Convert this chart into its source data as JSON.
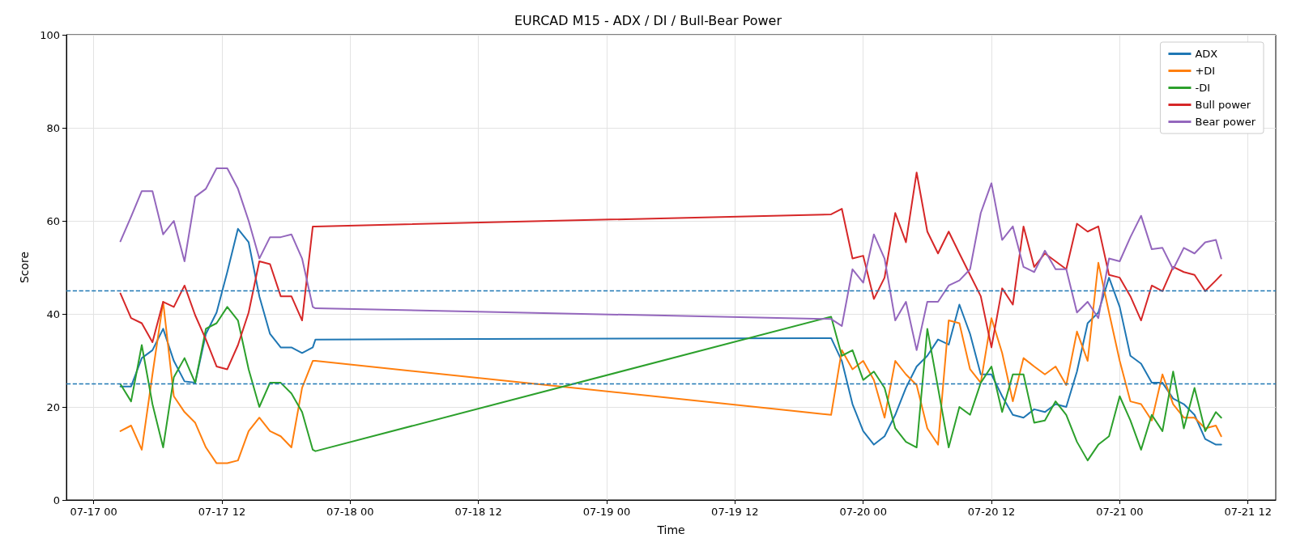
{
  "chart_data": {
    "type": "line",
    "title": "EURCAD M15 - ADX / DI / Bull-Bear Power",
    "xlabel": "Time",
    "ylabel": "Score",
    "x": [
      "--07-17T02:30",
      "--07-17T03:30",
      "--07-17T04:30",
      "--07-17T05:30",
      "--07-17T06:30",
      "--07-17T07:30",
      "--07-17T08:30",
      "--07-17T09:30",
      "--07-17T10:30",
      "--07-17T11:30",
      "--07-17T12:30",
      "--07-17T13:30",
      "--07-17T14:30",
      "--07-17T15:30",
      "--07-17T16:30",
      "--07-17T17:30",
      "--07-17T18:30",
      "--07-17T19:30",
      "--07-17T20:30",
      "--07-17T20:45",
      "--07-19T21:00",
      "--07-19T22:00",
      "--07-19T23:00",
      "--07-20T00:00",
      "--07-20T01:00",
      "--07-20T02:00",
      "--07-20T03:00",
      "--07-20T04:00",
      "--07-20T05:00",
      "--07-20T06:00",
      "--07-20T07:00",
      "--07-20T08:00",
      "--07-20T09:00",
      "--07-20T10:00",
      "--07-20T11:00",
      "--07-20T12:00",
      "--07-20T13:00",
      "--07-20T14:00",
      "--07-20T15:00",
      "--07-20T16:00",
      "--07-20T17:00",
      "--07-20T18:00",
      "--07-20T19:00",
      "--07-20T20:00",
      "--07-20T21:00",
      "--07-20T22:00",
      "--07-20T23:00",
      "--07-21T00:00",
      "--07-21T01:00",
      "--07-21T02:00",
      "--07-21T03:00",
      "--07-21T04:00",
      "--07-21T05:00",
      "--07-21T06:00",
      "--07-21T07:00",
      "--07-21T08:00",
      "--07-21T09:00",
      "--07-21T09:30"
    ],
    "series": [
      {
        "name": "ADX",
        "color": "#1f77b4",
        "values": [
          24.4,
          24.4,
          30.5,
          32.2,
          36.8,
          29.9,
          25.5,
          25.2,
          35.7,
          40.3,
          49,
          58.3,
          55.4,
          43.8,
          35.7,
          32.8,
          32.8,
          31.6,
          32.8,
          34.5,
          34.8,
          29.9,
          20.6,
          14.8,
          11.9,
          13.7,
          18.3,
          24.1,
          28.7,
          31,
          34.5,
          33.4,
          42,
          35.7,
          27,
          27,
          22.3,
          18.3,
          17.7,
          19.5,
          18.9,
          20.6,
          20,
          27.6,
          38,
          40.3,
          47.8,
          41.5,
          31,
          29.3,
          25.2,
          25.2,
          21.8,
          20.6,
          18.3,
          13.1,
          11.9,
          11.9
        ]
      },
      {
        "name": "+DI",
        "color": "#ff7f0e",
        "values": [
          14.8,
          16,
          10.8,
          27,
          42.6,
          22.3,
          18.9,
          16.6,
          11.3,
          7.9,
          7.9,
          8.5,
          14.8,
          17.7,
          14.8,
          13.7,
          11.3,
          24.1,
          29.9,
          29.9,
          18.3,
          32.2,
          28.1,
          29.9,
          25.8,
          17.7,
          29.9,
          27,
          24.7,
          15.4,
          11.9,
          38.6,
          38,
          28.1,
          25.2,
          39.1,
          31.6,
          21.2,
          30.5,
          28.7,
          27,
          28.7,
          24.7,
          36.2,
          29.9,
          51,
          40.3,
          29.9,
          21.2,
          20.6,
          17.1,
          27,
          20.6,
          17.7,
          17.7,
          15.4,
          16,
          13.7
        ]
      },
      {
        "name": "-DI",
        "color": "#2ca02c",
        "values": [
          24.9,
          21.2,
          33.3,
          20.6,
          11.3,
          26.4,
          30.5,
          25.2,
          36.8,
          38,
          41.5,
          38.6,
          28.1,
          20,
          25.2,
          25.2,
          22.9,
          18.9,
          10.8,
          10.5,
          39.4,
          31,
          32.2,
          25.8,
          27.6,
          24.1,
          15.4,
          12.5,
          11.3,
          36.8,
          24.1,
          11.3,
          20,
          18.3,
          25.2,
          28.7,
          18.9,
          27,
          27,
          16.6,
          17.1,
          21.2,
          18.3,
          12.5,
          8.5,
          11.9,
          13.7,
          22.3,
          17.1,
          10.8,
          18.3,
          14.8,
          27.6,
          15.4,
          24.1,
          14.8,
          18.9,
          17.7
        ]
      },
      {
        "name": "Bull power",
        "color": "#d62728",
        "values": [
          44.4,
          39.1,
          38,
          33.9,
          42.6,
          41.5,
          46.1,
          39.7,
          34.5,
          28.7,
          28.1,
          33.3,
          40.3,
          51.3,
          50.7,
          43.8,
          43.8,
          38.6,
          58.8,
          58.8,
          61.4,
          62.6,
          51.9,
          52.5,
          43.2,
          47.8,
          61.7,
          55.4,
          70.4,
          57.7,
          53,
          57.7,
          53,
          48.4,
          43.8,
          32.8,
          45.5,
          42,
          58.8,
          50.1,
          53,
          51.3,
          49.6,
          59.4,
          57.7,
          58.8,
          48.4,
          47.8,
          43.8,
          38.6,
          46.1,
          44.9,
          50.1,
          49,
          48.4,
          44.9,
          47.2,
          48.4
        ]
      },
      {
        "name": "Bear power",
        "color": "#9467bd",
        "values": [
          55.6,
          60.9,
          66.4,
          66.4,
          57.1,
          60,
          51.3,
          65.2,
          66.9,
          71.3,
          71.3,
          66.9,
          60,
          51.9,
          56.5,
          56.5,
          57.1,
          51.9,
          41.5,
          41.2,
          38.9,
          37.4,
          49.6,
          46.7,
          57.1,
          51.9,
          38.6,
          42.6,
          32.2,
          42.6,
          42.6,
          46.1,
          47.2,
          49.6,
          61.7,
          68.1,
          55.9,
          58.8,
          50.1,
          49,
          53.6,
          49.6,
          49.6,
          40.3,
          42.6,
          39.1,
          51.9,
          51.3,
          56.5,
          61.1,
          53.9,
          54.2,
          49.6,
          54.2,
          53,
          55.4,
          55.9,
          51.9
        ]
      }
    ],
    "xlim": [
      "--07-16T21:27",
      "--07-21T14:36"
    ],
    "xticks": [
      {
        "value": "--07-17T00:00",
        "label": "07-17 00"
      },
      {
        "value": "--07-17T12:00",
        "label": "07-17 12"
      },
      {
        "value": "--07-18T00:00",
        "label": "07-18 00"
      },
      {
        "value": "--07-18T12:00",
        "label": "07-18 12"
      },
      {
        "value": "--07-19T00:00",
        "label": "07-19 00"
      },
      {
        "value": "--07-19T12:00",
        "label": "07-19 12"
      },
      {
        "value": "--07-20T00:00",
        "label": "07-20 00"
      },
      {
        "value": "--07-20T12:00",
        "label": "07-20 12"
      },
      {
        "value": "--07-21T00:00",
        "label": "07-21 00"
      },
      {
        "value": "--07-21T12:00",
        "label": "07-21 12"
      }
    ],
    "ylim": [
      0,
      100
    ],
    "yticks": [
      0,
      20,
      40,
      60,
      80,
      100
    ],
    "ref_lines": [
      {
        "axis": "y",
        "value": 45,
        "color": "#1f77b4",
        "line_style": "dashed"
      },
      {
        "axis": "y",
        "value": 25,
        "color": "#1f77b4",
        "line_style": "dashed"
      }
    ],
    "grid": true,
    "legend": "top right",
    "marker": "none",
    "line_style": "solid"
  }
}
